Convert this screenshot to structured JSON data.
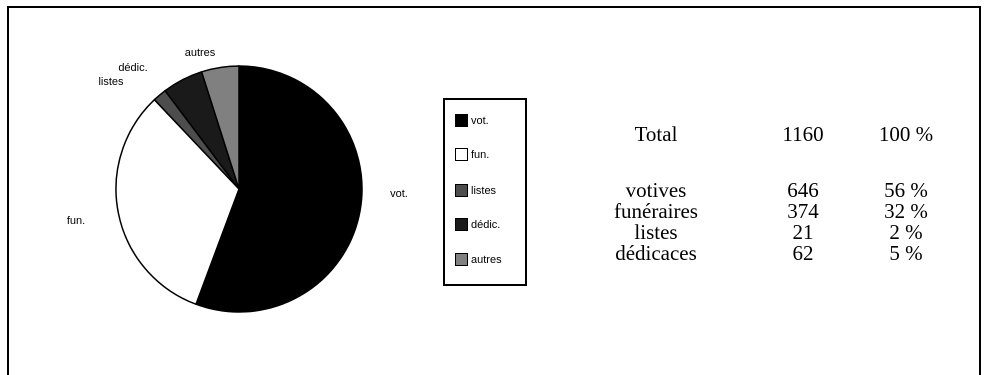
{
  "chart_data": {
    "type": "pie",
    "slices": [
      {
        "label": "vot.",
        "value": 646,
        "color": "#000000"
      },
      {
        "label": "fun.",
        "value": 374,
        "color": "#ffffff"
      },
      {
        "label": "listes",
        "value": 21,
        "color": "#4d4d4d"
      },
      {
        "label": "dédic.",
        "value": 62,
        "color": "#1a1a1a"
      },
      {
        "label": "autres",
        "value": 57,
        "color": "#808080"
      }
    ],
    "legend": [
      "vot.",
      "fun.",
      "listes",
      "dédic.",
      "autres"
    ],
    "legend_placement": "right"
  },
  "table": {
    "total": {
      "label": "Total",
      "count": "1160",
      "pct": "100 %"
    },
    "rows": [
      {
        "label": "votives",
        "count": "646",
        "pct": "56 %"
      },
      {
        "label": "funéraires",
        "count": "374",
        "pct": "32 %"
      },
      {
        "label": "listes",
        "count": "21",
        "pct": "2 %"
      },
      {
        "label": "dédicaces",
        "count": "62",
        "pct": "5 %"
      }
    ]
  }
}
